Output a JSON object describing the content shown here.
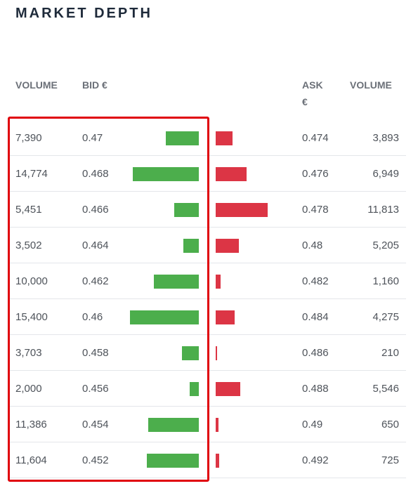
{
  "title": "MARKET DEPTH",
  "headers": {
    "bid_volume": "VOLUME",
    "bid": "BID €",
    "ask": "ASK €",
    "ask_volume": "VOLUME"
  },
  "colors": {
    "bid_bar": "#4cae4c",
    "ask_bar": "#dc3545",
    "highlight_border": "#e0000b"
  },
  "rows": [
    {
      "bid_volume": "7,390",
      "bid": "0.47",
      "ask": "0.474",
      "ask_volume": "3,893"
    },
    {
      "bid_volume": "14,774",
      "bid": "0.468",
      "ask": "0.476",
      "ask_volume": "6,949"
    },
    {
      "bid_volume": "5,451",
      "bid": "0.466",
      "ask": "0.478",
      "ask_volume": "11,813"
    },
    {
      "bid_volume": "3,502",
      "bid": "0.464",
      "ask": "0.48",
      "ask_volume": "5,205"
    },
    {
      "bid_volume": "10,000",
      "bid": "0.462",
      "ask": "0.482",
      "ask_volume": "1,160"
    },
    {
      "bid_volume": "15,400",
      "bid": "0.46",
      "ask": "0.484",
      "ask_volume": "4,275"
    },
    {
      "bid_volume": "3,703",
      "bid": "0.458",
      "ask": "0.486",
      "ask_volume": "210"
    },
    {
      "bid_volume": "2,000",
      "bid": "0.456",
      "ask": "0.488",
      "ask_volume": "5,546"
    },
    {
      "bid_volume": "11,386",
      "bid": "0.454",
      "ask": "0.49",
      "ask_volume": "650"
    },
    {
      "bid_volume": "11,604",
      "bid": "0.452",
      "ask": "0.492",
      "ask_volume": "725"
    }
  ]
}
